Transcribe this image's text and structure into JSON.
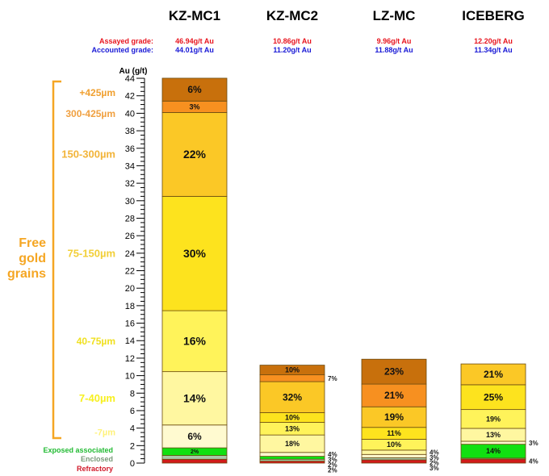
{
  "chart_data": {
    "type": "bar",
    "stacked": true,
    "ylabel": "Au (g/t)",
    "ylim": [
      0,
      44
    ],
    "y_ticks": [
      0,
      2,
      4,
      6,
      8,
      10,
      12,
      14,
      16,
      18,
      20,
      22,
      24,
      26,
      28,
      30,
      32,
      34,
      36,
      38,
      40,
      42,
      44
    ],
    "grade_labels": {
      "assayed": "Assayed grade:",
      "accounted": "Accounted grade:"
    },
    "grade_colors": {
      "assayed": "#e8141e",
      "accounted": "#1a1ad6"
    },
    "group_label": "Free gold grains",
    "group_color": "#f5a623",
    "components": [
      {
        "key": "refractory",
        "label": "Refractory",
        "color": "#d11a1a",
        "label_color": "#d11a2a"
      },
      {
        "key": "enclosed",
        "label": "Enclosed",
        "color": "#a8c8a8",
        "label_color": "#7a9a7a"
      },
      {
        "key": "exposed",
        "label": "Exposed associated",
        "color": "#11e011",
        "label_color": "#22bb33"
      },
      {
        "key": "m7",
        "label": "-7µm",
        "color": "#fffad0",
        "label_color": "#fff27a"
      },
      {
        "key": "7_40",
        "label": "7-40µm",
        "color": "#fff7a0",
        "label_color": "#f7f020"
      },
      {
        "key": "40_75",
        "label": "40-75µm",
        "color": "#fff35a",
        "label_color": "#f0e020"
      },
      {
        "key": "75_150",
        "label": "75-150µm",
        "color": "#fde31e",
        "label_color": "#f2cf38"
      },
      {
        "key": "150_300",
        "label": "150-300µm",
        "color": "#fbc826",
        "label_color": "#f2b43a"
      },
      {
        "key": "300_425",
        "label": "300-425µm",
        "color": "#f79020",
        "label_color": "#f0a040"
      },
      {
        "key": "p425",
        "label": "+425µm",
        "color": "#c8700c",
        "label_color": "#f0a030"
      }
    ],
    "series": [
      {
        "name": "KZ-MC1",
        "assayed": "46.94g/t Au",
        "accounted": "44.01g/t Au",
        "accounted_value": 44.01,
        "segments": {
          "refractory": 1,
          "enclosed": 1,
          "exposed": 2,
          "m7": 6,
          "7_40": 14,
          "40_75": 16,
          "75_150": 30,
          "150_300": 22,
          "300_425": 3,
          "p425": 6
        },
        "labels": {
          "exposed": "2%",
          "m7": "6%",
          "7_40": "14%",
          "40_75": "16%",
          "75_150": "30%",
          "150_300": "22%",
          "300_425": "3%",
          "p425": "6%"
        },
        "side_labels": {}
      },
      {
        "name": "KZ-MC2",
        "assayed": "10.86g/t Au",
        "accounted": "11.20g/t Au",
        "accounted_value": 11.2,
        "segments": {
          "refractory": 2,
          "enclosed": 2,
          "exposed": 3,
          "m7": 4,
          "7_40": 18,
          "40_75": 13,
          "75_150": 10,
          "150_300": 32,
          "300_425": 7,
          "p425": 10
        },
        "labels": {
          "7_40": "18%",
          "40_75": "13%",
          "75_150": "10%",
          "150_300": "32%",
          "p425": "10%"
        },
        "side_labels": {
          "m7": "4%",
          "exposed": "3%",
          "enclosed": "2%",
          "refractory": "2%",
          "300_425": "7%"
        }
      },
      {
        "name": "LZ-MC",
        "assayed": "9.96g/t Au",
        "accounted": "11.88g/t Au",
        "accounted_value": 11.88,
        "segments": {
          "refractory": 3,
          "enclosed": 2,
          "exposed": 3,
          "m7": 4,
          "7_40": 10,
          "40_75": 11,
          "75_150": 19,
          "150_300": 21,
          "300_425": 0,
          "p425": 23
        },
        "segment_colors_override": {
          "150_300": "#f79020",
          "75_150": "#fbc826",
          "40_75": "#fde31e",
          "7_40": "#fff35a",
          "m7": "#fff7a0",
          "exposed": "#fffad0"
        },
        "labels": {
          "7_40": "10%",
          "40_75": "11%",
          "75_150": "19%",
          "150_300": "21%",
          "p425": "23%"
        },
        "side_labels": {
          "m7": "4%",
          "exposed": "3%",
          "enclosed": "2%",
          "refractory": "3%"
        }
      },
      {
        "name": "ICEBERG",
        "assayed": "12.20g/t Au",
        "accounted": "11.34g/t Au",
        "accounted_value": 11.34,
        "segments": {
          "refractory": 4,
          "enclosed": 1,
          "exposed": 14,
          "m7": 3,
          "7_40": 13,
          "40_75": 19,
          "75_150": 25,
          "150_300": 21,
          "300_425": 0,
          "p425": 0
        },
        "labels": {
          "exposed": "14%",
          "7_40": "13%",
          "40_75": "19%",
          "75_150": "25%",
          "150_300": "21%"
        },
        "side_labels": {
          "m7": "3%",
          "refractory": "4%"
        }
      }
    ]
  }
}
